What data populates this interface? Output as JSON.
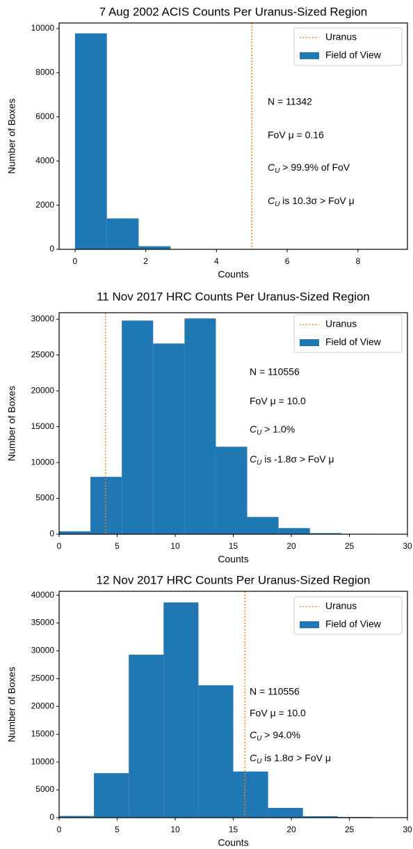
{
  "chart_data": [
    {
      "type": "histogram",
      "title": "7 Aug 2002 ACIS Counts Per Uranus-Sized Region",
      "xlabel": "Counts",
      "ylabel": "Number of Boxes",
      "bins": [
        0,
        0.9,
        1.8,
        2.7,
        3.6,
        4.5,
        5.4,
        6.3,
        7.2,
        8.1,
        9.0
      ],
      "series": [
        {
          "name": "Field of View",
          "color": "#1f77b4",
          "values": [
            9780,
            1400,
            140,
            15,
            5,
            1,
            0,
            0,
            0,
            1
          ]
        }
      ],
      "vlines": [
        {
          "name": "Uranus",
          "color": "#ff7f0e",
          "x": 5
        }
      ],
      "xlim": [
        -0.45,
        9.4
      ],
      "ylim": [
        0,
        10250
      ],
      "xticks": [
        0,
        2,
        4,
        6,
        8
      ],
      "yticks": [
        0,
        2000,
        4000,
        6000,
        8000,
        10000
      ],
      "legend": "upper right",
      "annotations": [
        "N = 11342",
        "FoV μ = 0.16",
        {
          "symbol": "C",
          "sub": "U",
          "rest": " > 99.9% of FoV"
        },
        {
          "symbol": "C",
          "sub": "U",
          "rest": " is 10.3σ > FoV μ"
        }
      ]
    },
    {
      "type": "histogram",
      "title": "11 Nov 2017 HRC Counts Per Uranus-Sized Region",
      "xlabel": "Counts",
      "ylabel": "Number of Boxes",
      "bins": [
        0,
        2.7,
        5.4,
        8.1,
        10.8,
        13.5,
        16.2,
        18.9,
        21.6,
        24.3,
        27
      ],
      "series": [
        {
          "name": "Field of View",
          "color": "#1f77b4",
          "values": [
            400,
            8000,
            29800,
            26600,
            30100,
            12200,
            2400,
            850,
            150,
            56
          ]
        }
      ],
      "vlines": [
        {
          "name": "Uranus",
          "color": "#ff7f0e",
          "x": 4
        }
      ],
      "xlim": [
        0,
        30
      ],
      "ylim": [
        0,
        30900
      ],
      "xticks": [
        0,
        5,
        10,
        15,
        20,
        25,
        30
      ],
      "yticks": [
        0,
        5000,
        10000,
        15000,
        20000,
        25000,
        30000
      ],
      "legend": "upper right",
      "annotations": [
        "N = 110556",
        "FoV μ = 10.0",
        {
          "symbol": "C",
          "sub": "U",
          "rest": " > 1.0%"
        },
        {
          "symbol": "C",
          "sub": "U",
          "rest": " is -1.8σ > FoV μ"
        }
      ]
    },
    {
      "type": "histogram",
      "title": "12 Nov 2017 HRC Counts Per Uranus-Sized Region",
      "xlabel": "Counts",
      "ylabel": "Number of Boxes",
      "bins": [
        0,
        3,
        6,
        9,
        12,
        15,
        18,
        21,
        24,
        27,
        30
      ],
      "series": [
        {
          "name": "Field of View",
          "color": "#1f77b4",
          "values": [
            300,
            8000,
            29300,
            38700,
            23800,
            8300,
            1750,
            250,
            120,
            36
          ]
        }
      ],
      "vlines": [
        {
          "name": "Uranus",
          "color": "#ff7f0e",
          "x": 16
        }
      ],
      "xlim": [
        0,
        30
      ],
      "ylim": [
        0,
        40700
      ],
      "xticks": [
        0,
        5,
        10,
        15,
        20,
        25,
        30
      ],
      "yticks": [
        0,
        5000,
        10000,
        15000,
        20000,
        25000,
        30000,
        35000,
        40000
      ],
      "legend": "upper right",
      "annotations": [
        "N = 110556",
        "FoV μ = 10.0",
        {
          "symbol": "C",
          "sub": "U",
          "rest": " > 94.0%"
        },
        {
          "symbol": "C",
          "sub": "U",
          "rest": " is 1.8σ > FoV μ"
        }
      ]
    }
  ]
}
